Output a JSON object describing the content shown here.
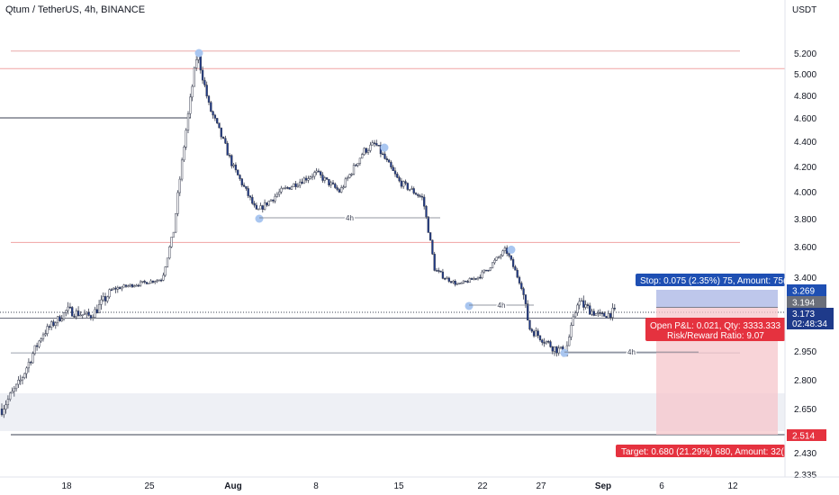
{
  "header": {
    "title": "Qtum / TetherUS, 4h, BINANCE"
  },
  "axis": {
    "currency": "USDT",
    "y_ticks": [
      "5.200",
      "5.000",
      "4.800",
      "4.600",
      "4.400",
      "4.200",
      "4.000",
      "3.800",
      "3.600",
      "3.400",
      "2.950",
      "2.800",
      "2.650",
      "2.430",
      "2.335"
    ],
    "x_ticks": [
      "18",
      "25",
      "Aug",
      "8",
      "15",
      "22",
      "27",
      "Sep",
      "6",
      "12"
    ]
  },
  "price_labels": {
    "stop_level": "3.269",
    "entry_level": "3.194",
    "last_price": "3.173",
    "countdown": "02:48:34",
    "target_level": "2.514"
  },
  "position": {
    "stop_text": "Stop: 0.075 (2.35%) 75, Amount: 75(",
    "pnl_text": "Open P&L: 0.021, Qty: 3333.333",
    "ratio_text": "Risk/Reward Ratio: 9.07",
    "target_text": "Target: 0.680 (21.29%) 680, Amount: 32("
  },
  "annotations": {
    "interval_label": "4h"
  },
  "colors": {
    "bull": "#ffffff",
    "bear": "#1e3a8a",
    "wick": "#3a3f51",
    "stop_zone": "#b3bde8",
    "target_zone": "#f5c6cb",
    "stop_badge": "#1e4fb3",
    "target_badge": "#e5323f",
    "pivot": "#a9c6f0"
  },
  "chart_data": {
    "type": "candlestick",
    "title": "Qtum / TetherUS, 4h, BINANCE",
    "ylabel": "USDT",
    "ylim": [
      2.3,
      5.45
    ],
    "price_path": [
      [
        "Jul 12",
        2.6
      ],
      [
        "Jul 14",
        2.78
      ],
      [
        "Jul 16",
        3.05
      ],
      [
        "Jul 18",
        3.18
      ],
      [
        "Jul 20",
        3.15
      ],
      [
        "Jul 22",
        3.28
      ],
      [
        "Jul 24",
        3.33
      ],
      [
        "Jul 26",
        3.38
      ],
      [
        "Jul 27",
        3.7
      ],
      [
        "Jul 28",
        4.45
      ],
      [
        "Jul 29",
        5.2
      ],
      [
        "Jul 30",
        4.7
      ],
      [
        "Aug 1",
        4.2
      ],
      [
        "Aug 3",
        3.85
      ],
      [
        "Aug 5",
        4.0
      ],
      [
        "Aug 8",
        4.15
      ],
      [
        "Aug 10",
        4.0
      ],
      [
        "Aug 12",
        4.32
      ],
      [
        "Aug 13",
        4.38
      ],
      [
        "Aug 15",
        4.08
      ],
      [
        "Aug 17",
        3.95
      ],
      [
        "Aug 18",
        3.45
      ],
      [
        "Aug 20",
        3.32
      ],
      [
        "Aug 22",
        3.42
      ],
      [
        "Aug 24",
        3.58
      ],
      [
        "Aug 25",
        3.4
      ],
      [
        "Aug 26",
        3.08
      ],
      [
        "Aug 28",
        2.97
      ],
      [
        "Aug 29",
        2.94
      ],
      [
        "Aug 30",
        3.22
      ],
      [
        "Sep 1",
        3.15
      ],
      [
        "Sep 2",
        3.17
      ]
    ],
    "pivots": [
      5.2,
      3.8,
      4.35,
      3.2,
      3.58,
      2.94
    ],
    "horizontal_lines": [
      5.22,
      5.05,
      4.6,
      3.63,
      3.14,
      2.94,
      2.514
    ],
    "position_tool": {
      "entry": 3.194,
      "stop": 3.269,
      "target": 2.514,
      "last_price": 3.173
    }
  }
}
